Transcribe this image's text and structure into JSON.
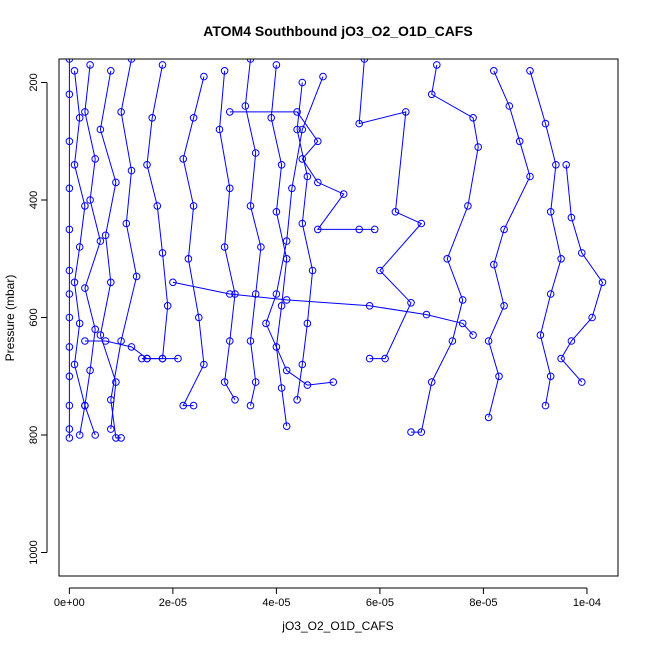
{
  "chart_data": {
    "type": "scatter",
    "title": "ATOM4 Southbound jO3_O2_O1D_CAFS",
    "xlabel": "jO3_O2_O1D_CAFS",
    "ylabel": "Pressure (mbar)",
    "xlim": [
      -2e-06,
      0.000106
    ],
    "ylim": [
      1040,
      160
    ],
    "y_reversed": true,
    "grid": false,
    "legend": "none",
    "marker": "open-circle",
    "color": "#0000ff",
    "x_ticks": [
      {
        "value": 0,
        "label": "0e+00"
      },
      {
        "value": 2e-05,
        "label": "2e-05"
      },
      {
        "value": 4e-05,
        "label": "4e-05"
      },
      {
        "value": 6e-05,
        "label": "6e-05"
      },
      {
        "value": 8e-05,
        "label": "8e-05"
      },
      {
        "value": 0.0001,
        "label": "1e-04"
      }
    ],
    "y_ticks": [
      {
        "value": 200,
        "label": "200"
      },
      {
        "value": 400,
        "label": "400"
      },
      {
        "value": 600,
        "label": "600"
      },
      {
        "value": 800,
        "label": "800"
      },
      {
        "value": 1000,
        "label": "1000"
      }
    ],
    "series": [
      {
        "values": [
          [
            0.0,
            160
          ],
          [
            0.0,
            220
          ],
          [
            0.0,
            300
          ],
          [
            0.0,
            380
          ],
          [
            0.0,
            450
          ],
          [
            0.0,
            520
          ],
          [
            0.0,
            560
          ],
          [
            0.0,
            600
          ],
          [
            0.0,
            650
          ],
          [
            0.0,
            700
          ],
          [
            0.0,
            750
          ],
          [
            0.0,
            790
          ],
          [
            0.0,
            805
          ]
        ]
      },
      {
        "values": [
          [
            1e-06,
            180
          ],
          [
            2e-06,
            260
          ],
          [
            1e-06,
            340
          ],
          [
            3e-06,
            410
          ],
          [
            2e-06,
            480
          ],
          [
            1e-06,
            540
          ],
          [
            2e-06,
            610
          ],
          [
            1e-06,
            680
          ],
          [
            3e-06,
            750
          ],
          [
            2e-06,
            800
          ]
        ]
      },
      {
        "values": [
          [
            4e-06,
            170
          ],
          [
            3e-06,
            250
          ],
          [
            5e-06,
            330
          ],
          [
            4e-06,
            400
          ],
          [
            6e-06,
            470
          ],
          [
            3e-06,
            550
          ],
          [
            5e-06,
            620
          ],
          [
            4e-06,
            690
          ],
          [
            3e-06,
            750
          ],
          [
            5e-06,
            800
          ]
        ]
      },
      {
        "values": [
          [
            8e-06,
            180
          ],
          [
            6e-06,
            280
          ],
          [
            9e-06,
            370
          ],
          [
            7e-06,
            460
          ],
          [
            8e-06,
            540
          ],
          [
            6e-06,
            630
          ],
          [
            9e-06,
            710
          ],
          [
            8e-06,
            790
          ]
        ]
      },
      {
        "values": [
          [
            1.2e-05,
            160
          ],
          [
            1e-05,
            250
          ],
          [
            1.2e-05,
            350
          ],
          [
            1.1e-05,
            440
          ],
          [
            1.3e-05,
            530
          ],
          [
            1e-05,
            640
          ],
          [
            8e-06,
            740
          ],
          [
            9e-06,
            805
          ],
          [
            1e-05,
            805
          ]
        ]
      },
      {
        "values": [
          [
            1.8e-05,
            170
          ],
          [
            1.6e-05,
            260
          ],
          [
            1.5e-05,
            340
          ],
          [
            1.7e-05,
            410
          ],
          [
            1.8e-05,
            490
          ],
          [
            1.9e-05,
            580
          ],
          [
            1.8e-05,
            670
          ],
          [
            1.5e-05,
            670
          ],
          [
            1.4e-05,
            670
          ]
        ]
      },
      {
        "values": [
          [
            2.6e-05,
            190
          ],
          [
            2.4e-05,
            260
          ],
          [
            2.2e-05,
            330
          ],
          [
            2.4e-05,
            410
          ],
          [
            2.3e-05,
            500
          ],
          [
            2.5e-05,
            600
          ],
          [
            2.6e-05,
            680
          ],
          [
            2.2e-05,
            750
          ],
          [
            2.4e-05,
            750
          ]
        ]
      },
      {
        "values": [
          [
            3e-05,
            180
          ],
          [
            2.9e-05,
            280
          ],
          [
            3.1e-05,
            380
          ],
          [
            3e-05,
            480
          ],
          [
            3.2e-05,
            560
          ],
          [
            3.1e-05,
            640
          ],
          [
            3e-05,
            710
          ],
          [
            3.2e-05,
            740
          ]
        ]
      },
      {
        "values": [
          [
            3.5e-05,
            160
          ],
          [
            3.4e-05,
            240
          ],
          [
            3.6e-05,
            320
          ],
          [
            3.5e-05,
            410
          ],
          [
            3.7e-05,
            480
          ],
          [
            3.6e-05,
            560
          ],
          [
            3.5e-05,
            640
          ],
          [
            3.6e-05,
            710
          ],
          [
            3.5e-05,
            750
          ]
        ]
      },
      {
        "values": [
          [
            4e-05,
            170
          ],
          [
            3.9e-05,
            260
          ],
          [
            4.1e-05,
            340
          ],
          [
            4e-05,
            420
          ],
          [
            4.2e-05,
            500
          ],
          [
            4.1e-05,
            580
          ],
          [
            4e-05,
            650
          ],
          [
            4.1e-05,
            720
          ],
          [
            4.2e-05,
            785
          ]
        ]
      },
      {
        "values": [
          [
            4.5e-05,
            200
          ],
          [
            4.4e-05,
            280
          ],
          [
            4.6e-05,
            360
          ],
          [
            4.5e-05,
            440
          ],
          [
            4.7e-05,
            520
          ],
          [
            4.6e-05,
            610
          ],
          [
            4.5e-05,
            680
          ],
          [
            4.4e-05,
            740
          ]
        ]
      },
      {
        "values": [
          [
            5.7e-05,
            160
          ],
          [
            5.6e-05,
            270
          ],
          [
            6.5e-05,
            250
          ],
          [
            6.3e-05,
            420
          ],
          [
            6.8e-05,
            440
          ],
          [
            6e-05,
            520
          ],
          [
            6.6e-05,
            575
          ],
          [
            6.1e-05,
            670
          ],
          [
            5.8e-05,
            670
          ]
        ]
      },
      {
        "values": [
          [
            7.1e-05,
            170
          ],
          [
            7e-05,
            220
          ],
          [
            7.8e-05,
            260
          ],
          [
            7.9e-05,
            310
          ],
          [
            7.7e-05,
            410
          ],
          [
            7.3e-05,
            500
          ],
          [
            7.6e-05,
            570
          ],
          [
            7.4e-05,
            640
          ],
          [
            7e-05,
            710
          ],
          [
            6.8e-05,
            795
          ],
          [
            6.6e-05,
            795
          ]
        ]
      },
      {
        "values": [
          [
            8.2e-05,
            180
          ],
          [
            8.5e-05,
            240
          ],
          [
            8.7e-05,
            300
          ],
          [
            8.9e-05,
            360
          ],
          [
            8.4e-05,
            450
          ],
          [
            8.2e-05,
            510
          ],
          [
            8.4e-05,
            580
          ],
          [
            8.1e-05,
            640
          ],
          [
            8.3e-05,
            700
          ],
          [
            8.1e-05,
            770
          ]
        ]
      },
      {
        "values": [
          [
            8.9e-05,
            180
          ],
          [
            9.2e-05,
            270
          ],
          [
            9.4e-05,
            340
          ],
          [
            9.3e-05,
            420
          ],
          [
            9.5e-05,
            500
          ],
          [
            9.3e-05,
            560
          ],
          [
            9.1e-05,
            630
          ],
          [
            9.3e-05,
            700
          ],
          [
            9.2e-05,
            750
          ]
        ]
      },
      {
        "values": [
          [
            9.6e-05,
            340
          ],
          [
            9.7e-05,
            430
          ],
          [
            9.9e-05,
            490
          ],
          [
            0.000103,
            540
          ],
          [
            0.000101,
            600
          ],
          [
            9.7e-05,
            640
          ],
          [
            9.5e-05,
            670
          ],
          [
            9.9e-05,
            710
          ]
        ]
      },
      {
        "values": [
          [
            3.1e-05,
            250
          ],
          [
            4.4e-05,
            250
          ],
          [
            4.8e-05,
            300
          ],
          [
            4.5e-05,
            330
          ],
          [
            4.8e-05,
            370
          ],
          [
            5.3e-05,
            390
          ],
          [
            4.8e-05,
            450
          ],
          [
            5.6e-05,
            450
          ],
          [
            5.9e-05,
            450
          ]
        ]
      },
      {
        "values": [
          [
            2e-05,
            540
          ],
          [
            3.1e-05,
            560
          ],
          [
            4.2e-05,
            570
          ],
          [
            5.8e-05,
            580
          ],
          [
            6.9e-05,
            595
          ],
          [
            7.6e-05,
            610
          ],
          [
            7.8e-05,
            630
          ]
        ]
      },
      {
        "values": [
          [
            4.9e-05,
            190
          ],
          [
            4.5e-05,
            280
          ],
          [
            4.3e-05,
            380
          ],
          [
            4.2e-05,
            470
          ],
          [
            4e-05,
            560
          ],
          [
            3.8e-05,
            610
          ],
          [
            4.2e-05,
            690
          ],
          [
            4.6e-05,
            715
          ],
          [
            5.1e-05,
            710
          ]
        ]
      },
      {
        "values": [
          [
            3e-06,
            640
          ],
          [
            7e-06,
            640
          ],
          [
            1.2e-05,
            650
          ],
          [
            1.5e-05,
            670
          ],
          [
            1.8e-05,
            670
          ],
          [
            2.1e-05,
            670
          ]
        ]
      }
    ]
  }
}
